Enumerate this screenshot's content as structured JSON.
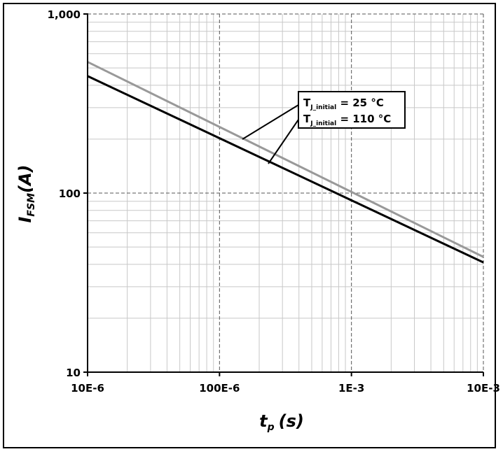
{
  "chart_data": {
    "type": "line",
    "scale": {
      "x": "log",
      "y": "log"
    },
    "xlim": [
      1e-05,
      0.01
    ],
    "ylim": [
      10,
      1000
    ],
    "x_tick_labels": [
      "10E-6",
      "100E-6",
      "1E-3",
      "10E-3"
    ],
    "y_tick_labels": [
      "10",
      "100",
      "1,000"
    ],
    "grid": true,
    "xlabel": {
      "main": "t",
      "sub": "p",
      "unit": "(s)"
    },
    "ylabel": {
      "main": "I",
      "sub": "FSM",
      "unit": "(A)"
    },
    "series": [
      {
        "name": {
          "main": "T",
          "sub": "J_initial",
          "rest": " = 25 °C"
        },
        "color": "#999999",
        "x": [
          1e-05,
          0.01
        ],
        "y": [
          540,
          44
        ]
      },
      {
        "name": {
          "main": "T",
          "sub": "J_initial",
          "rest": " = 110 °C"
        },
        "color": "#000000",
        "x": [
          1e-05,
          0.01
        ],
        "y": [
          450,
          41
        ]
      }
    ]
  }
}
